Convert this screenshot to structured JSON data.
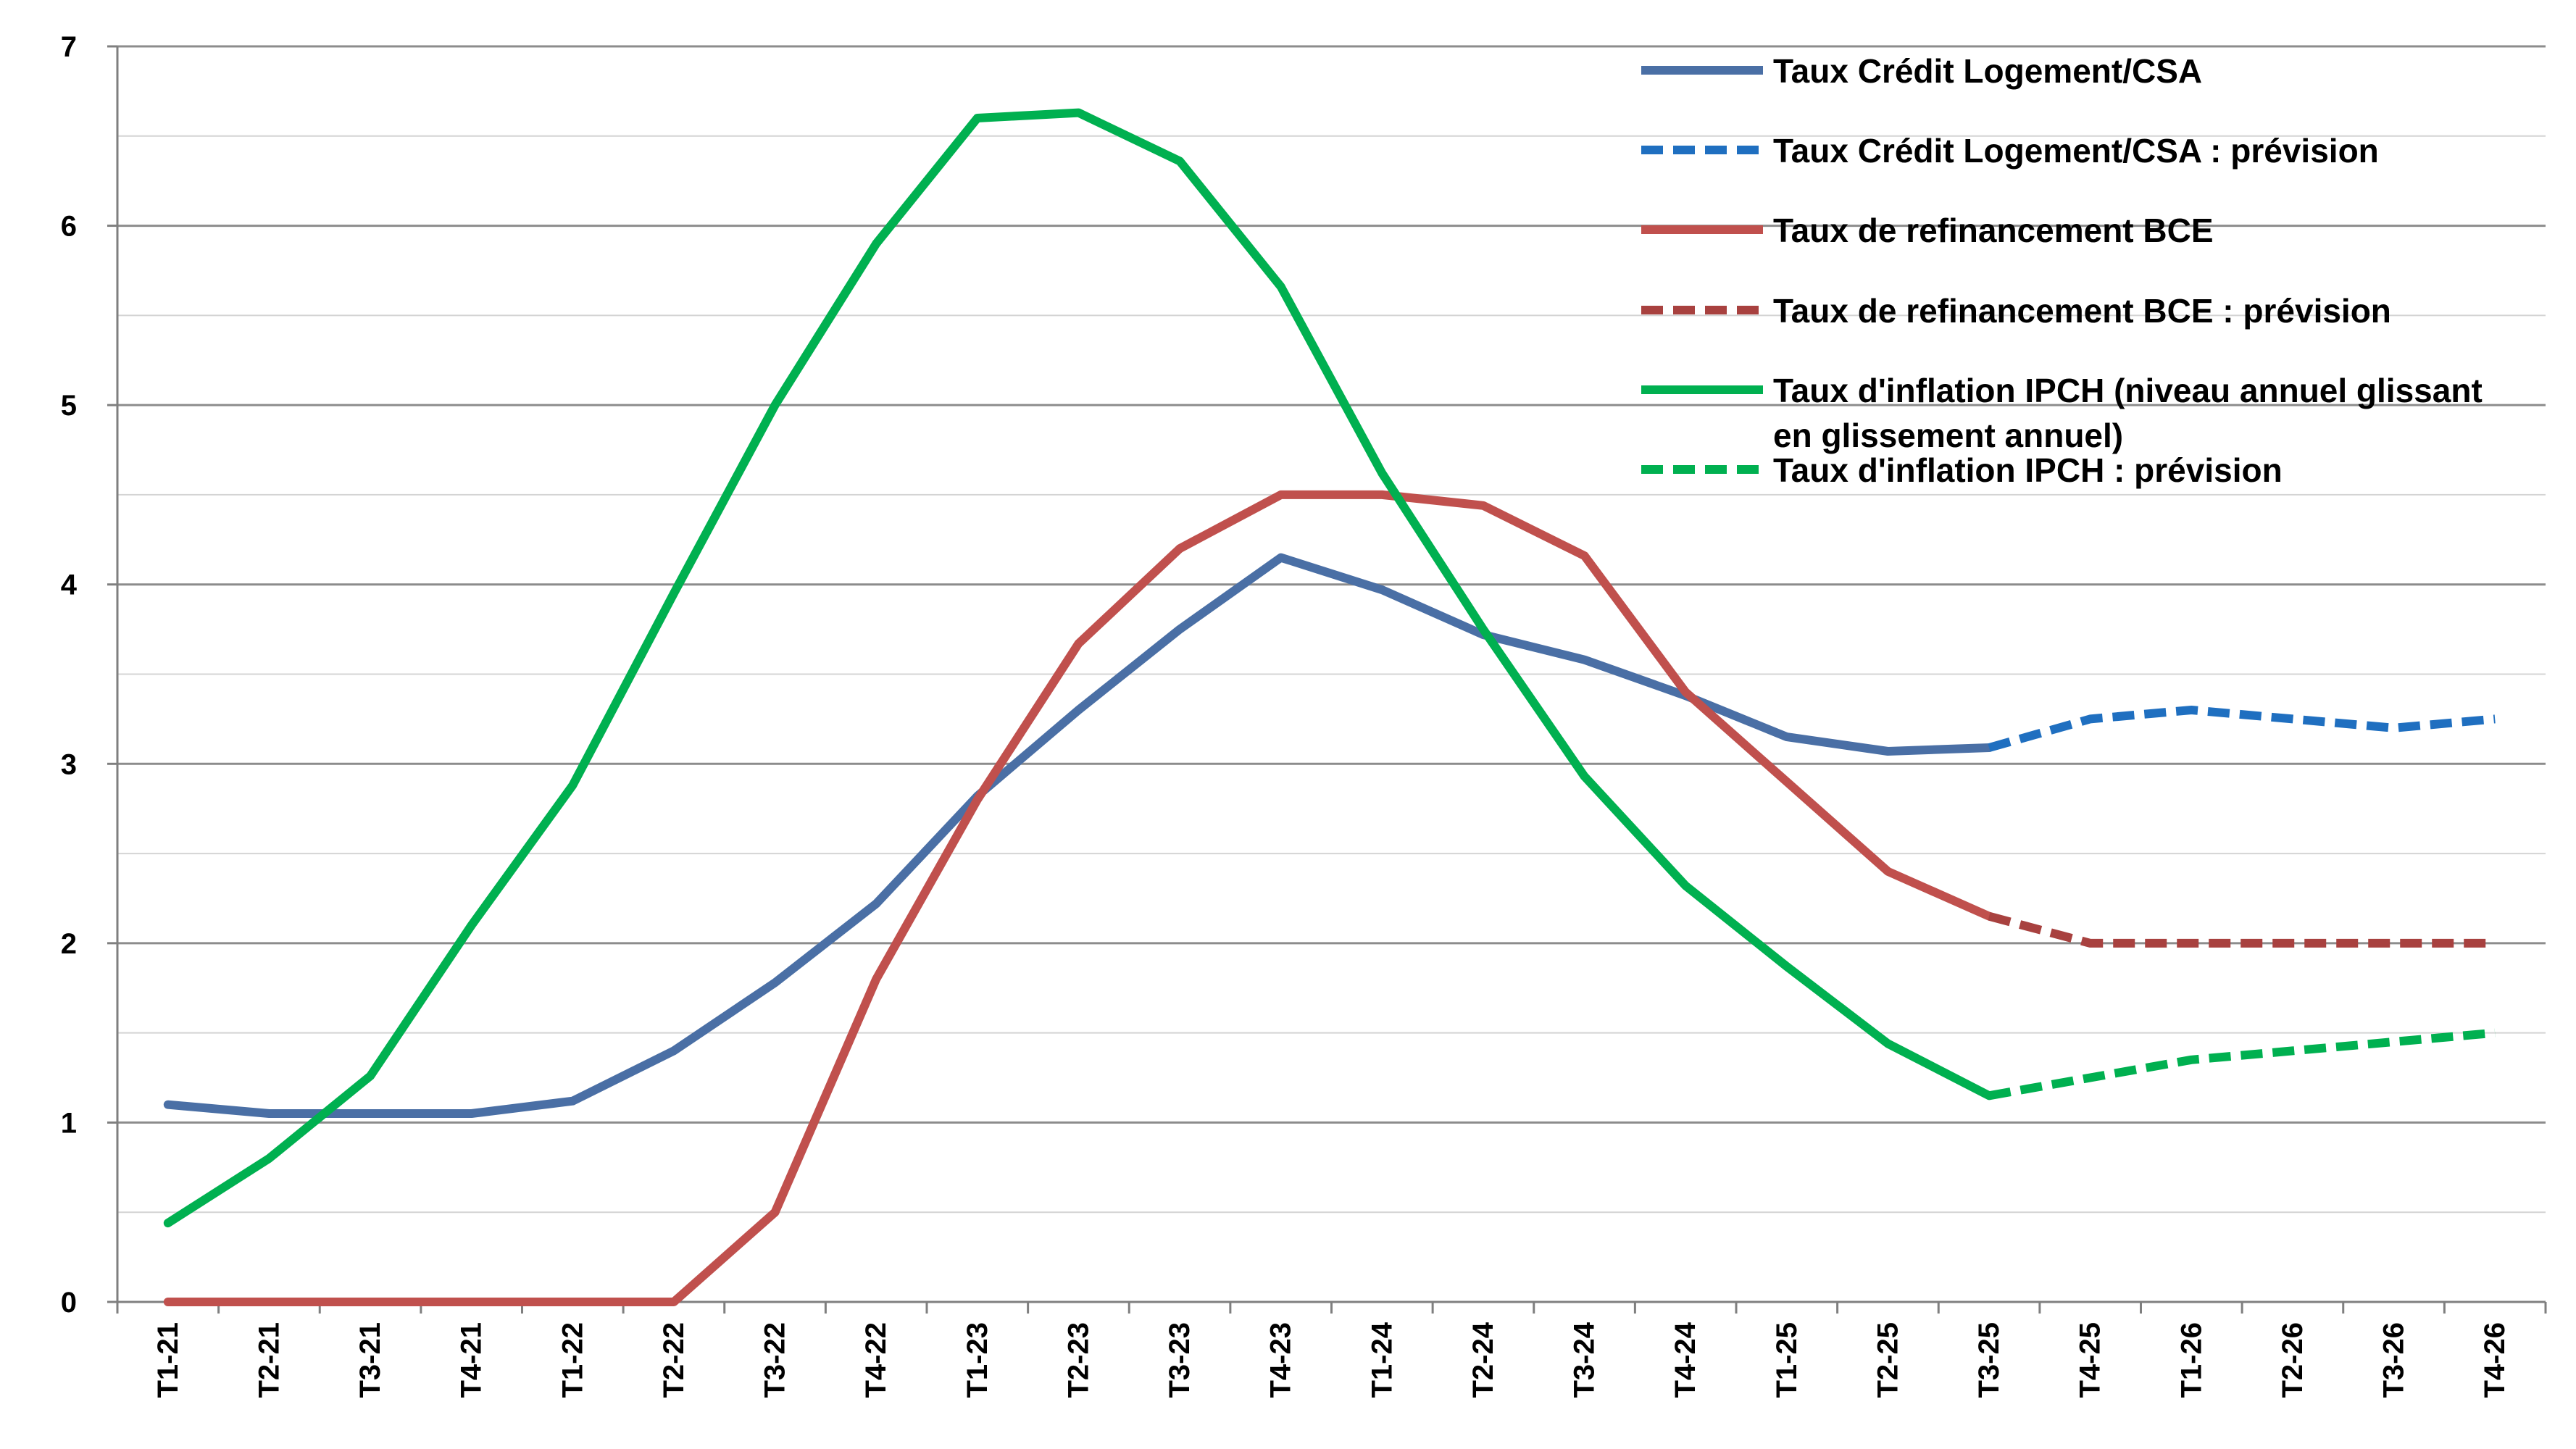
{
  "chart_data": {
    "type": "line",
    "title": "",
    "xlabel": "",
    "ylabel": "",
    "ylim": [
      0,
      7
    ],
    "yticks": [
      0,
      1,
      2,
      3,
      4,
      5,
      6,
      7
    ],
    "grid": "horizontal major and minor",
    "legend_position": "top-right",
    "categories": [
      "T1-21",
      "T2-21",
      "T3-21",
      "T4-21",
      "T1-22",
      "T2-22",
      "T3-22",
      "T4-22",
      "T1-23",
      "T2-23",
      "T3-23",
      "T4-23",
      "T1-24",
      "T2-24",
      "T3-24",
      "T4-24",
      "T1-25",
      "T2-25",
      "T3-25",
      "T4-25",
      "T1-26",
      "T2-26",
      "T3-26",
      "T4-26"
    ],
    "series": [
      {
        "name": "Taux Crédit Logement/CSA",
        "color": "#4a6fa5",
        "dashed": false,
        "values": [
          1.1,
          1.05,
          1.05,
          1.05,
          1.12,
          1.4,
          1.78,
          2.22,
          2.82,
          3.3,
          3.75,
          4.15,
          3.97,
          3.72,
          3.58,
          3.38,
          3.15,
          3.07,
          3.09,
          null,
          null,
          null,
          null,
          null
        ]
      },
      {
        "name": "Taux Crédit Logement/CSA : prévision",
        "color": "#1f6fc0",
        "dashed": true,
        "values": [
          null,
          null,
          null,
          null,
          null,
          null,
          null,
          null,
          null,
          null,
          null,
          null,
          null,
          null,
          null,
          null,
          null,
          null,
          3.09,
          3.25,
          3.3,
          3.25,
          3.2,
          3.25
        ]
      },
      {
        "name": "Taux de refinancement BCE",
        "color": "#c0504d",
        "dashed": false,
        "values": [
          0,
          0,
          0,
          0,
          0,
          0,
          0.5,
          1.8,
          2.8,
          3.67,
          4.2,
          4.5,
          4.5,
          4.44,
          4.16,
          3.4,
          2.9,
          2.4,
          2.15,
          null,
          null,
          null,
          null,
          null
        ]
      },
      {
        "name": "Taux de refinancement BCE : prévision",
        "color": "#a8413f",
        "dashed": true,
        "values": [
          null,
          null,
          null,
          null,
          null,
          null,
          null,
          null,
          null,
          null,
          null,
          null,
          null,
          null,
          null,
          null,
          null,
          null,
          2.15,
          2.0,
          2.0,
          2.0,
          2.0,
          2.0
        ]
      },
      {
        "name": "Taux d'inflation IPCH (niveau annuel glissant en glissement annuel)",
        "color": "#00b050",
        "dashed": false,
        "values": [
          0.44,
          0.8,
          1.26,
          2.1,
          2.88,
          3.95,
          5.0,
          5.9,
          6.6,
          6.63,
          6.36,
          5.66,
          4.62,
          3.75,
          2.93,
          2.32,
          1.87,
          1.44,
          1.15,
          null,
          null,
          null,
          null,
          null
        ]
      },
      {
        "name": "Taux d'inflation IPCH : prévision",
        "color": "#00b050",
        "dashed": true,
        "values": [
          null,
          null,
          null,
          null,
          null,
          null,
          null,
          null,
          null,
          null,
          null,
          null,
          null,
          null,
          null,
          null,
          null,
          null,
          1.15,
          1.25,
          1.35,
          1.4,
          1.45,
          1.5
        ]
      }
    ],
    "legend": [
      {
        "label": "Taux Crédit Logement/CSA"
      },
      {
        "label": "Taux Crédit Logement/CSA : prévision"
      },
      {
        "label": "Taux de refinancement BCE"
      },
      {
        "label": "Taux de refinancement BCE : prévision"
      },
      {
        "label_line1": "Taux d'inflation IPCH (niveau annuel glissant",
        "label_line2": "en glissement annuel)"
      },
      {
        "label": "Taux d'inflation IPCH : prévision"
      }
    ]
  }
}
